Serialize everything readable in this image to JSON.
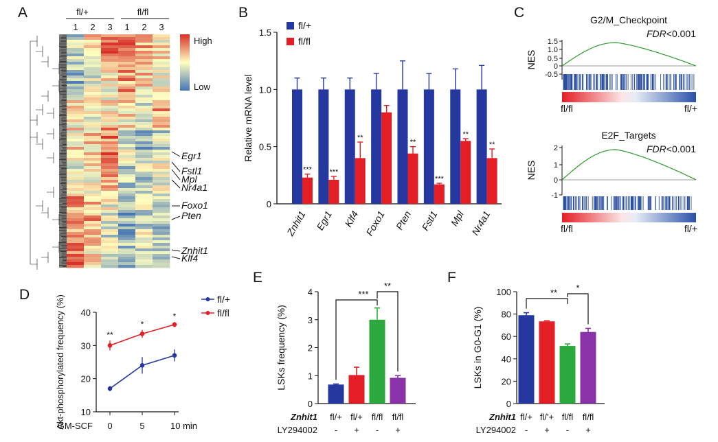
{
  "colors": {
    "blue": "#2438a0",
    "red": "#e31e24",
    "green": "#2ca83c",
    "purple": "#8a33a8",
    "gsea_line": "#2f9a2f",
    "heat_high": "#d73027",
    "heat_mid": "#ffffbf",
    "heat_low": "#4575b4"
  },
  "panels": {
    "A": {
      "label": "A",
      "groups": [
        "fl/+",
        "fl/fl"
      ],
      "columns": [
        "1",
        "2",
        "3",
        "1",
        "2",
        "3"
      ],
      "legend_high": "High",
      "legend_low": "Low",
      "genes": [
        "Egr1",
        "Fstl1",
        "Mpl",
        "Nr4a1",
        "Foxo1",
        "Pten",
        "Znhit1",
        "Klf4"
      ]
    },
    "B": {
      "label": "B"
    },
    "C": {
      "label": "C",
      "plots": [
        {
          "title": "G2/M_Checkpoint",
          "fdr_label": "FDR",
          "fdr_value": "<0.001",
          "ylabel": "NES",
          "ticks": [
            "1.5",
            "1.0",
            "0.5",
            "0",
            "-0.5"
          ],
          "left_label": "fl/fl",
          "right_label": "fl/+"
        },
        {
          "title": "E2F_Targets",
          "fdr_label": "FDR",
          "fdr_value": "<0.001",
          "ylabel": "NES",
          "ticks": [
            "2",
            "1",
            "0",
            "-1"
          ],
          "left_label": "fl/fl",
          "right_label": "fl/+"
        }
      ]
    },
    "D": {
      "label": "D"
    },
    "E": {
      "label": "E",
      "row1_label": "Znhit1",
      "row2_label": "LY294002"
    },
    "F": {
      "label": "F",
      "row1_label": "Znhit1",
      "row2_label": "LY294002"
    }
  },
  "chart_data": [
    {
      "panel": "B",
      "type": "bar",
      "ylabel": "Relative mRNA level",
      "ylim": [
        0,
        1.5
      ],
      "yticks": [
        "0",
        "0.5",
        "1.0",
        "1.5"
      ],
      "categories": [
        "Znhit1",
        "Egr1",
        "Klf4",
        "Foxo1",
        "Pten",
        "Fstl1",
        "Mpl",
        "Nr4a1"
      ],
      "series": [
        {
          "name": "fl/+",
          "values": [
            1,
            1,
            1,
            1,
            1,
            1,
            1,
            1
          ],
          "errors": [
            0.1,
            0.1,
            0.1,
            0.14,
            0.25,
            0.14,
            0.18,
            0.21
          ]
        },
        {
          "name": "fl/fl",
          "values": [
            0.23,
            0.21,
            0.4,
            0.8,
            0.44,
            0.17,
            0.55,
            0.4
          ],
          "errors": [
            0.03,
            0.03,
            0.14,
            0.06,
            0.06,
            0.01,
            0.02,
            0.08
          ],
          "significance": [
            "***",
            "***",
            "**",
            "",
            "**",
            "***",
            "**",
            "**"
          ]
        }
      ],
      "legend": [
        "fl/+",
        "fl/fl"
      ]
    },
    {
      "panel": "D",
      "type": "line",
      "ylabel": "Akt-phosphorylated frequency (%)",
      "xlabel": "GM-SCF",
      "x_unit": "10 min",
      "x": [
        0,
        5,
        10
      ],
      "xticks": [
        "0",
        "5"
      ],
      "ylim": [
        10,
        40
      ],
      "yticks": [
        "10",
        "20",
        "30",
        "40"
      ],
      "series": [
        {
          "name": "fl/+",
          "values": [
            17,
            24,
            27
          ],
          "errors": [
            0.8,
            2.5,
            1.8
          ]
        },
        {
          "name": "fl/fl",
          "values": [
            30,
            33.5,
            36.3
          ],
          "errors": [
            1.5,
            1.2,
            0.8
          ]
        }
      ],
      "significance": [
        "**",
        "*",
        "*"
      ],
      "legend": [
        "fl/+",
        "fl/fl"
      ]
    },
    {
      "panel": "E",
      "type": "bar",
      "ylabel": "LSKs frequency (%)",
      "ylim": [
        0,
        4
      ],
      "yticks": [
        "0",
        "1",
        "2",
        "3",
        "4"
      ],
      "categories": [
        "fl/+",
        "fl/+",
        "fl/fl",
        "fl/fl"
      ],
      "ly294002": [
        "-",
        "+",
        "-",
        "+"
      ],
      "values": [
        0.68,
        1.02,
        3.0,
        0.92
      ],
      "errors": [
        0.02,
        0.28,
        0.42,
        0.08
      ],
      "brackets": [
        "***",
        "**"
      ]
    },
    {
      "panel": "F",
      "type": "bar",
      "ylabel": "LSKs in G0-G1 (%)",
      "ylim": [
        0,
        100
      ],
      "yticks": [
        "0",
        "20",
        "40",
        "60",
        "80",
        "100"
      ],
      "categories": [
        "fl/+",
        "fl/'+",
        "fl/fl",
        "fl/fl"
      ],
      "ly294002": [
        "-",
        "+",
        "-",
        "+"
      ],
      "values": [
        79,
        73.5,
        51.5,
        64
      ],
      "errors": [
        2.2,
        0.5,
        1.8,
        3.2
      ],
      "brackets": [
        "**",
        "*"
      ]
    }
  ]
}
